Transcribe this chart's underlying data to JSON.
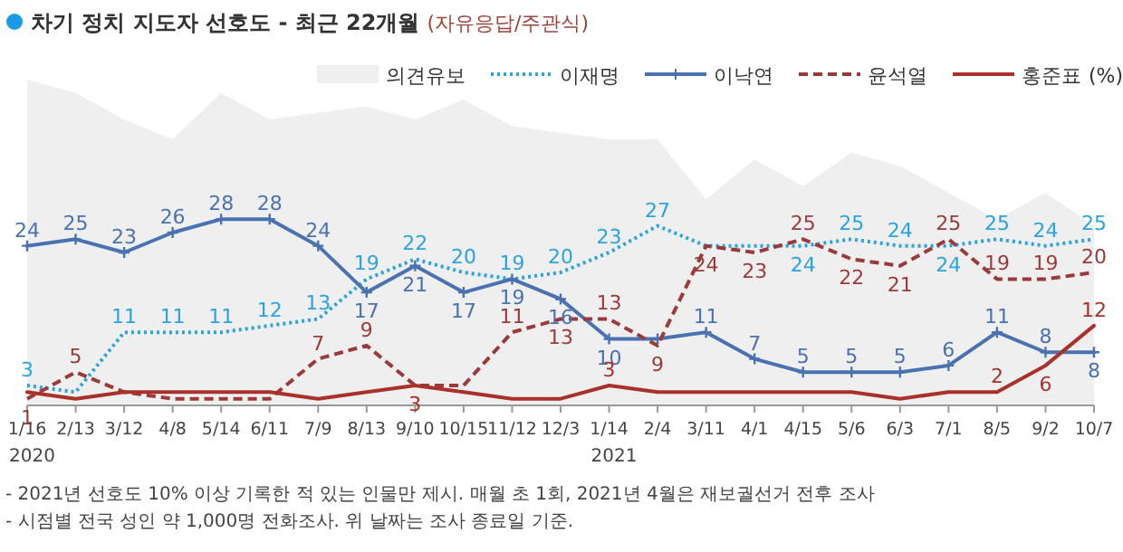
{
  "chart_data": {
    "type": "line",
    "title": "차기 정치 지도자 선호도 - 최근 22개월",
    "subtitle": "(자유응답/주관식)",
    "ylabel": "(%)",
    "categories": [
      "1/16",
      "2/13",
      "3/12",
      "4/8",
      "5/14",
      "6/11",
      "7/9",
      "8/13",
      "9/10",
      "10/15",
      "11/12",
      "12/3",
      "1/14",
      "2/4",
      "3/11",
      "4/1",
      "4/15",
      "5/6",
      "6/3",
      "7/1",
      "8/5",
      "9/2",
      "10/7"
    ],
    "series": [
      {
        "name": "의견유보",
        "type": "area",
        "color": "#efefef",
        "values": [
          49,
          47,
          43,
          40,
          47,
          43,
          44,
          45,
          43,
          46,
          42,
          41,
          40,
          40,
          31,
          37,
          33,
          38,
          36,
          32,
          28,
          32,
          27
        ]
      },
      {
        "name": "이재명",
        "color": "#2aa3e0",
        "line_style": "dotted",
        "values": [
          3,
          2,
          11,
          11,
          11,
          12,
          13,
          19,
          22,
          20,
          19,
          20,
          23,
          27,
          24,
          24,
          24,
          25,
          24,
          24,
          25,
          24,
          25
        ],
        "value_labels": [
          "3",
          null,
          "11",
          "11",
          "11",
          "12",
          "13",
          "19",
          "22",
          "20",
          "19",
          "20",
          "23",
          "27",
          null,
          null,
          "24",
          "25",
          "24",
          "24",
          "25",
          "24",
          "25"
        ]
      },
      {
        "name": "이낙연",
        "color": "#4a72b0",
        "marker": "cross",
        "values": [
          24,
          25,
          23,
          26,
          28,
          28,
          24,
          17,
          21,
          17,
          19,
          16,
          10,
          10,
          11,
          7,
          5,
          5,
          5,
          6,
          11,
          8,
          8
        ],
        "value_labels": [
          "24",
          "25",
          "23",
          "26",
          "28",
          "28",
          "24",
          "17",
          "21",
          "17",
          "19",
          "16",
          "10",
          null,
          "11",
          "7",
          "5",
          "5",
          "5",
          "6",
          "11",
          "8",
          "8"
        ]
      },
      {
        "name": "윤석열",
        "color": "#9b3a3a",
        "line_style": "dashed",
        "values": [
          1,
          5,
          2,
          1,
          1,
          1,
          7,
          9,
          3,
          3,
          11,
          13,
          13,
          9,
          24,
          23,
          25,
          22,
          21,
          25,
          19,
          19,
          20
        ],
        "value_labels": [
          "1",
          "5",
          null,
          null,
          null,
          null,
          "7",
          "9",
          null,
          null,
          "11",
          "13",
          "13",
          "9",
          "24",
          "23",
          "25",
          "22",
          "21",
          "25",
          "19",
          "19",
          "20"
        ]
      },
      {
        "name": "홍준표",
        "color": "#a8322b",
        "values": [
          2,
          1,
          2,
          2,
          2,
          2,
          1,
          2,
          3,
          2,
          1,
          1,
          3,
          2,
          2,
          2,
          2,
          2,
          1,
          2,
          2,
          6,
          12
        ],
        "value_labels": [
          null,
          null,
          null,
          null,
          null,
          null,
          null,
          null,
          "3",
          null,
          null,
          null,
          "3",
          null,
          null,
          null,
          null,
          null,
          null,
          null,
          "2",
          "6",
          "12"
        ]
      }
    ],
    "legend": "top right",
    "grid": false,
    "annotations": [
      "2020",
      "2021",
      "- 2021년 선호도 10% 이상 기록한 적 있는 인물만 제시. 매월 초 1회, 2021년 4월은 재보궐선거 전후 조사",
      "- 시점별 전국 성인 약 1,000명 전화조사. 위 날짜는 조사 종료일 기준."
    ]
  }
}
